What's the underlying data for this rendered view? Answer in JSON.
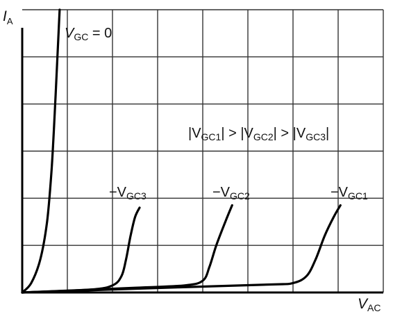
{
  "chart_data": {
    "type": "line",
    "xlabel": {
      "main": "V",
      "sub": "AC"
    },
    "ylabel": {
      "main": "I",
      "sub": "A"
    },
    "xlim": [
      0,
      8
    ],
    "ylim": [
      0,
      6
    ],
    "grid": true,
    "condition": {
      "parts": [
        {
          "main": "|V",
          "sub": "GC1"
        },
        {
          "main": "| > |V",
          "sub": "GC2"
        },
        {
          "main": "| > |V",
          "sub": "GC3"
        },
        {
          "main": "|",
          "sub": ""
        }
      ]
    },
    "series": [
      {
        "label": {
          "main": "V",
          "sub": "GC",
          "suffix": " = 0"
        },
        "points": [
          [
            0,
            0
          ],
          [
            0.2,
            0.2
          ],
          [
            0.4,
            0.7
          ],
          [
            0.55,
            1.5
          ],
          [
            0.65,
            2.6
          ],
          [
            0.72,
            3.8
          ],
          [
            0.78,
            5.0
          ],
          [
            0.83,
            6.0
          ]
        ]
      },
      {
        "label": {
          "main": "−V",
          "sub": "GC3",
          "suffix": ""
        },
        "points": [
          [
            0,
            0
          ],
          [
            1.5,
            0.06
          ],
          [
            2.0,
            0.15
          ],
          [
            2.2,
            0.35
          ],
          [
            2.3,
            0.7
          ],
          [
            2.4,
            1.2
          ],
          [
            2.5,
            1.6
          ],
          [
            2.6,
            1.8
          ]
        ]
      },
      {
        "label": {
          "main": "−V",
          "sub": "GC2",
          "suffix": ""
        },
        "points": [
          [
            0,
            0
          ],
          [
            2.5,
            0.1
          ],
          [
            3.6,
            0.15
          ],
          [
            4.0,
            0.25
          ],
          [
            4.15,
            0.55
          ],
          [
            4.3,
            1.0
          ],
          [
            4.5,
            1.5
          ],
          [
            4.65,
            1.85
          ]
        ]
      },
      {
        "label": {
          "main": "−V",
          "sub": "GC1",
          "suffix": ""
        },
        "points": [
          [
            0,
            0
          ],
          [
            3.5,
            0.11
          ],
          [
            5.5,
            0.17
          ],
          [
            6.0,
            0.2
          ],
          [
            6.3,
            0.35
          ],
          [
            6.5,
            0.7
          ],
          [
            6.7,
            1.2
          ],
          [
            6.9,
            1.6
          ],
          [
            7.05,
            1.85
          ]
        ]
      }
    ]
  }
}
